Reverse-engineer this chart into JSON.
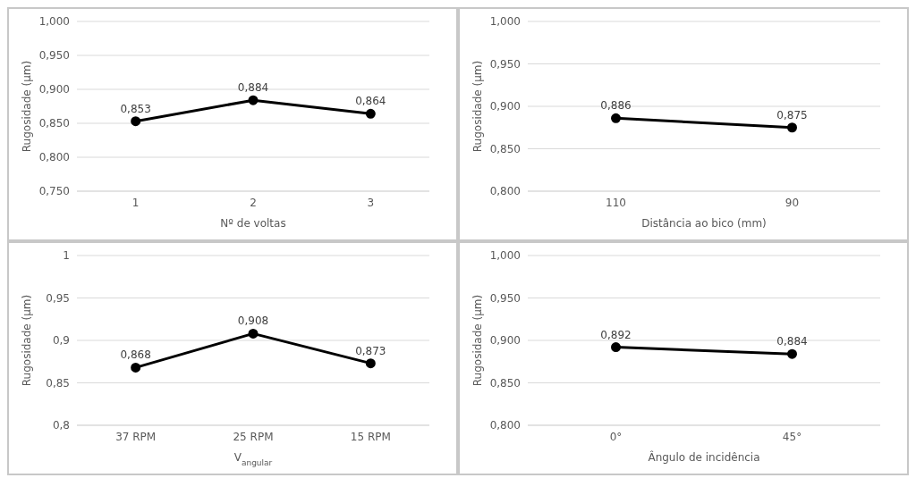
{
  "chart_data": [
    {
      "type": "line",
      "ylabel": "Rugosidade (µm)",
      "xlabel": "Nº de voltas",
      "categories": [
        "1",
        "2",
        "3"
      ],
      "series": [
        {
          "color": "#000000",
          "values": [
            0.853,
            0.884,
            0.864
          ],
          "value_labels": [
            "0,853",
            "0,884",
            "0,864"
          ]
        }
      ],
      "ylim": [
        0.75,
        1.0
      ],
      "yticks": [
        {
          "value": 0.75,
          "label": "0,750"
        },
        {
          "value": 0.8,
          "label": "0,800"
        },
        {
          "value": 0.85,
          "label": "0,850"
        },
        {
          "value": 0.9,
          "label": "0,900"
        },
        {
          "value": 0.95,
          "label": "0,950"
        },
        {
          "value": 1.0,
          "label": "1,000"
        }
      ],
      "grid": "y",
      "marker": "circle",
      "line_style": "solid"
    },
    {
      "type": "line",
      "ylabel": "Rugosidade (µm)",
      "xlabel": "Distância ao bico (mm)",
      "categories": [
        "110",
        "90"
      ],
      "series": [
        {
          "color": "#000000",
          "values": [
            0.886,
            0.875
          ],
          "value_labels": [
            "0,886",
            "0,875"
          ]
        }
      ],
      "ylim": [
        0.8,
        1.0
      ],
      "yticks": [
        {
          "value": 0.8,
          "label": "0,800"
        },
        {
          "value": 0.85,
          "label": "0,850"
        },
        {
          "value": 0.9,
          "label": "0,900"
        },
        {
          "value": 0.95,
          "label": "0,950"
        },
        {
          "value": 1.0,
          "label": "1,000"
        }
      ],
      "grid": "y",
      "marker": "circle",
      "line_style": "solid"
    },
    {
      "type": "line",
      "ylabel": "Rugosidade (µm)",
      "xlabel": "V$_{angular}$",
      "categories": [
        "37 RPM",
        "25 RPM",
        "15 RPM"
      ],
      "series": [
        {
          "color": "#000000",
          "values": [
            0.868,
            0.908,
            0.873
          ],
          "value_labels": [
            "0,868",
            "0,908",
            "0,873"
          ]
        }
      ],
      "ylim": [
        0.8,
        1.0
      ],
      "yticks": [
        {
          "value": 0.8,
          "label": "0,8"
        },
        {
          "value": 0.85,
          "label": "0,85"
        },
        {
          "value": 0.9,
          "label": "0,9"
        },
        {
          "value": 0.95,
          "label": "0,95"
        },
        {
          "value": 1.0,
          "label": "1"
        }
      ],
      "grid": "y",
      "marker": "circle",
      "line_style": "solid"
    },
    {
      "type": "line",
      "ylabel": "Rugosidade (µm)",
      "xlabel": "Ângulo de incidência",
      "categories": [
        "0°",
        "45°"
      ],
      "series": [
        {
          "color": "#000000",
          "values": [
            0.892,
            0.884
          ],
          "value_labels": [
            "0,892",
            "0,884"
          ]
        }
      ],
      "ylim": [
        0.8,
        1.0
      ],
      "yticks": [
        {
          "value": 0.8,
          "label": "0,800"
        },
        {
          "value": 0.85,
          "label": "0,850"
        },
        {
          "value": 0.9,
          "label": "0,900"
        },
        {
          "value": 0.95,
          "label": "0,950"
        },
        {
          "value": 1.0,
          "label": "1,000"
        }
      ],
      "grid": "y",
      "marker": "circle",
      "line_style": "solid"
    }
  ]
}
